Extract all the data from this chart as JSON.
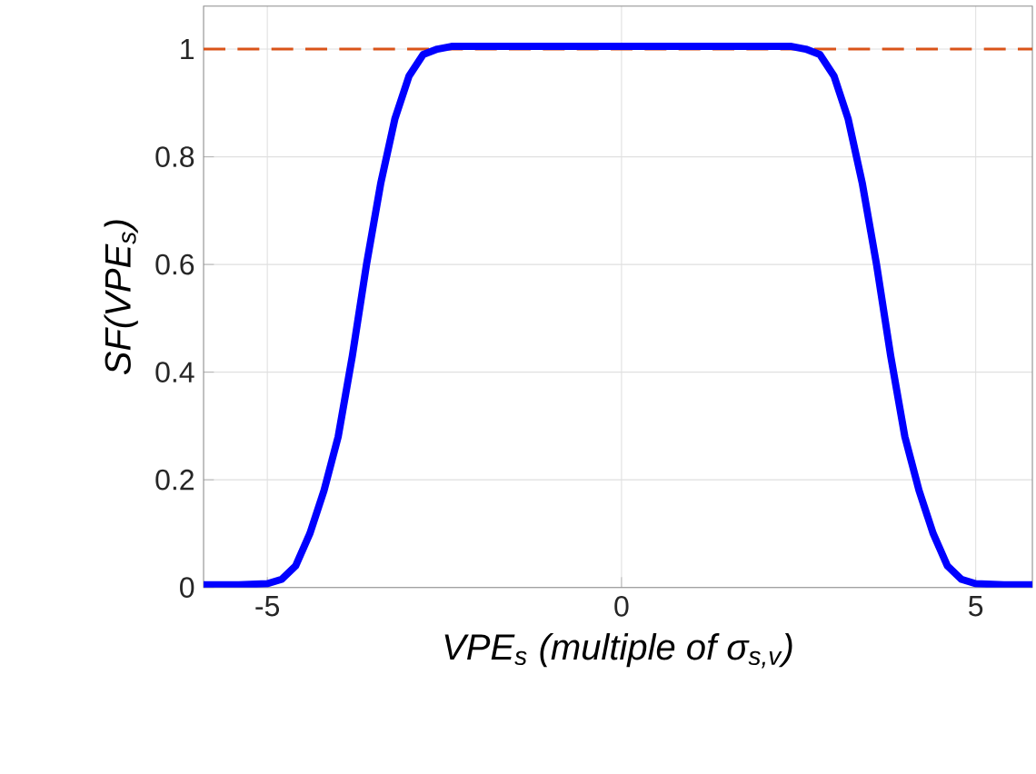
{
  "chart_data": {
    "type": "line",
    "xlabel": "VPE$_{s}$ (multiple of σ$_{s,v}$)",
    "ylabel": "SF(VPE$_{s}$)",
    "series": [
      {
        "color": "#0000ff",
        "x": [
          -5.9,
          -5.4,
          -5.0,
          -4.8,
          -4.6,
          -4.4,
          -4.2,
          -4.0,
          -3.8,
          -3.6,
          -3.4,
          -3.2,
          -3.0,
          -2.8,
          -2.6,
          -2.4,
          -2.0,
          -1.0,
          0,
          1.0,
          2.0,
          2.4,
          2.6,
          2.8,
          3.0,
          3.2,
          3.4,
          3.6,
          3.8,
          4.0,
          4.2,
          4.4,
          4.6,
          4.8,
          5.0,
          5.4,
          5.8
        ],
        "values": [
          0.005,
          0.005,
          0.007,
          0.015,
          0.04,
          0.1,
          0.18,
          0.28,
          0.43,
          0.6,
          0.75,
          0.87,
          0.95,
          0.99,
          1.0,
          1.005,
          1.005,
          1.005,
          1.005,
          1.005,
          1.005,
          1.005,
          1.0,
          0.99,
          0.95,
          0.87,
          0.75,
          0.6,
          0.43,
          0.28,
          0.18,
          0.1,
          0.04,
          0.015,
          0.007,
          0.005,
          0.005
        ]
      }
    ],
    "xlim": [
      -5.9,
      5.8
    ],
    "ylim": [
      0,
      1.08
    ],
    "xticks": [
      -5,
      0,
      5
    ],
    "yticks": [
      0,
      0.2,
      0.4,
      0.6,
      0.8,
      1
    ],
    "grid": true,
    "line_style": "solid",
    "marker": "none",
    "ref_lines": [
      {
        "axis": "y",
        "value": 1,
        "color": "#d95319",
        "line_style": "dashed"
      }
    ]
  }
}
